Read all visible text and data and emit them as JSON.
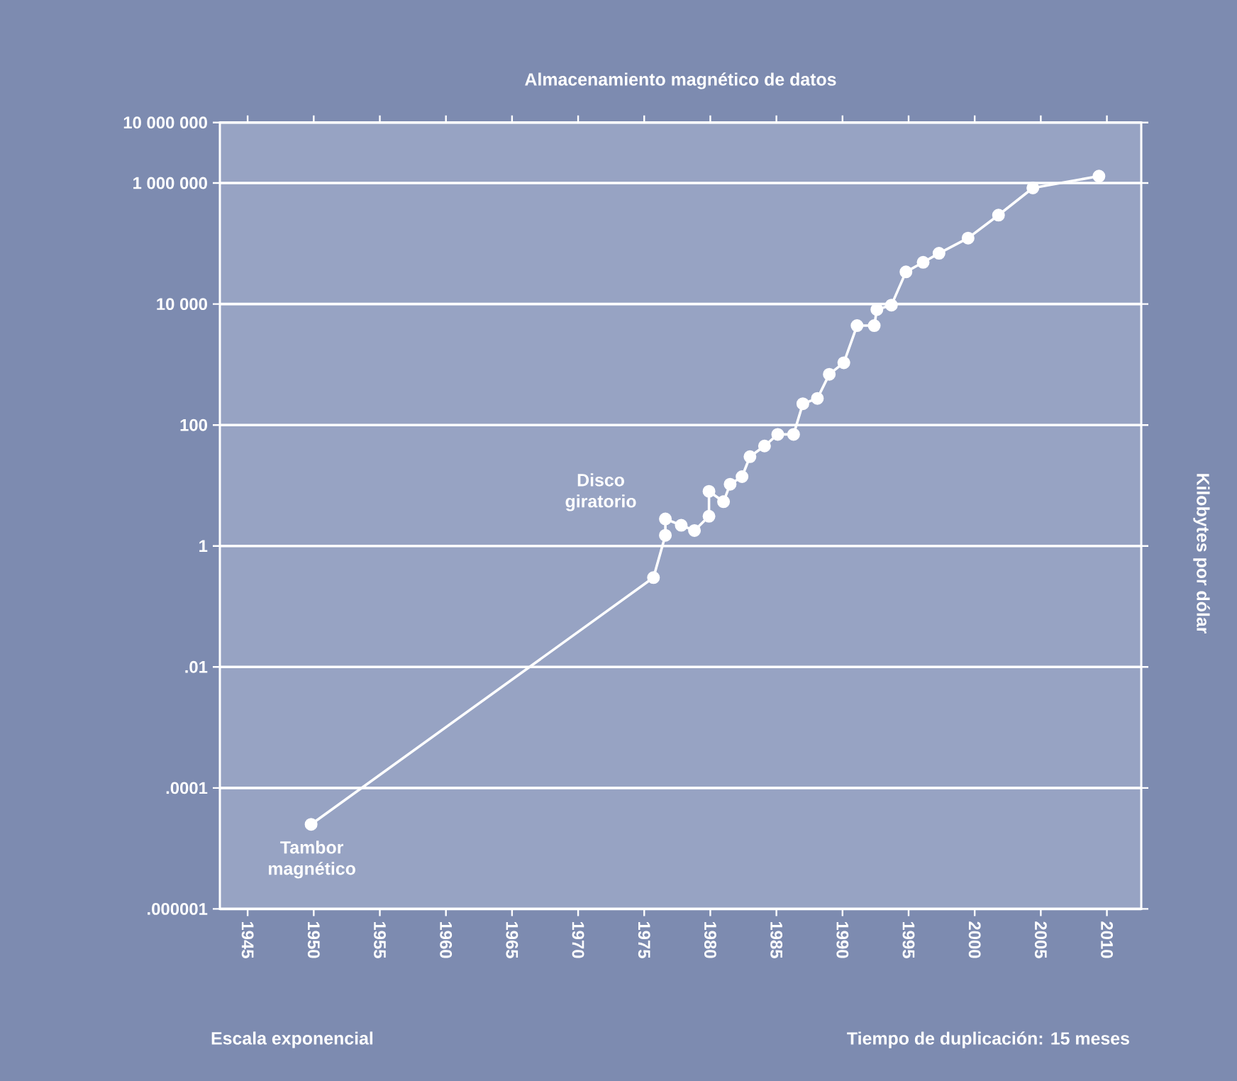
{
  "chart_data": {
    "type": "line",
    "title": "Almacenamiento magnético de datos",
    "ylabel": "Kilobytes por dólar",
    "annotations": [
      {
        "text": "Disco giratorio",
        "x": 1976.6,
        "y": 2.8
      },
      {
        "text": "Tambor magnético",
        "x": 1949.8,
        "y": 2.5e-05
      },
      "Escala exponencial",
      "Tiempo de duplicación: 15 meses"
    ],
    "series": [
      {
        "color": "#ffffff",
        "x": [
          1949.8,
          1975.7,
          1976.6,
          1976.6,
          1977.8,
          1978.8,
          1979.9,
          1979.9,
          1981.0,
          1981.5,
          1982.4,
          1983.0,
          1984.1,
          1985.1,
          1986.3,
          1987.0,
          1988.1,
          1989.0,
          1990.1,
          1991.1,
          1992.4,
          1992.6,
          1993.7,
          1994.8,
          1996.1,
          1997.3,
          1999.5,
          2001.8,
          2004.4,
          2009.4
        ],
        "values": [
          2.5e-05,
          0.3,
          1.5,
          2.8,
          2.2,
          1.8,
          3.1,
          8,
          5.4,
          10.5,
          14,
          30,
          45,
          70,
          70,
          225,
          275,
          690,
          1070,
          4400,
          4400,
          8100,
          9600,
          34000,
          49000,
          69000,
          123000,
          295000,
          830000,
          1300000
        ]
      }
    ],
    "log": "y",
    "xlim": [
      1942.9,
      2012.6
    ],
    "ylim": [
      1e-06,
      10000000
    ],
    "xticks": [
      1945,
      1950,
      1955,
      1960,
      1965,
      1970,
      1975,
      1980,
      1985,
      1990,
      1995,
      2000,
      2005,
      2010
    ],
    "yticks": [
      {
        "value": 1e-06,
        "label": ".000001"
      },
      {
        "value": 0.0001,
        "label": ".0001"
      },
      {
        "value": 0.01,
        "label": ".01"
      },
      {
        "value": 1,
        "label": "1"
      },
      {
        "value": 100,
        "label": "100"
      },
      {
        "value": 10000,
        "label": "10 000"
      },
      {
        "value": 1000000,
        "label": "1 000 000"
      },
      {
        "value": 10000000,
        "label": "10 000 000"
      }
    ],
    "grid": "y",
    "marker": "circle",
    "line_style": "solid"
  }
}
